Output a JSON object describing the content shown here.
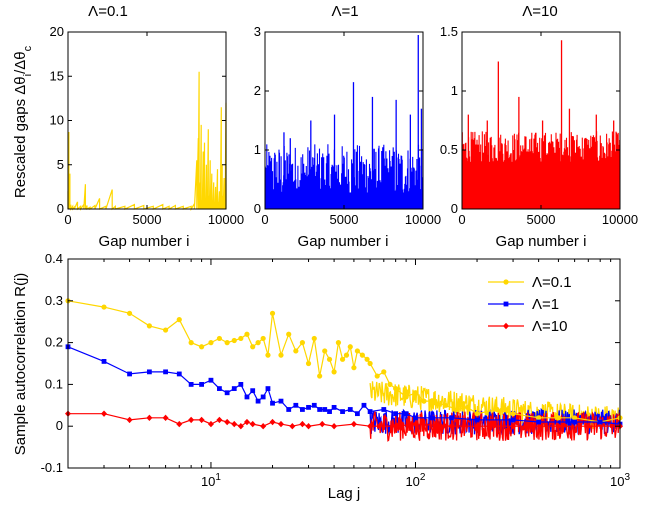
{
  "chart_data": [
    {
      "type": "bar",
      "title": "Λ=0.1",
      "xlabel": "Gap number i",
      "ylabel": "Rescaled gaps Δθ",
      "ylabel_sub1": "i",
      "ylabel_mid": "/Δθ",
      "ylabel_sub2": "c",
      "xlim": [
        0,
        10000
      ],
      "ylim": [
        0,
        20
      ],
      "xticks": [
        0,
        5000,
        10000
      ],
      "yticks": [
        0,
        5,
        10,
        15,
        20
      ],
      "color": "#FFD700",
      "series_x": [
        0,
        60,
        120,
        180,
        300,
        400,
        600,
        800,
        1000,
        1100,
        1200,
        1400,
        1700,
        2000,
        2400,
        2800,
        3000,
        3600,
        4200,
        4800,
        5400,
        6000,
        6400,
        6800,
        7300,
        7800,
        8000,
        8150,
        8250,
        8300,
        8380,
        8430,
        8500,
        8560,
        8600,
        8640,
        8700,
        8760,
        8820,
        8880,
        8950,
        9000,
        9050,
        9100,
        9160,
        9220,
        9280,
        9340,
        9400,
        9460,
        9520,
        9580,
        9640,
        9700,
        9760,
        9820,
        9880,
        9940,
        10000
      ],
      "series_y": [
        2,
        8.7,
        4,
        0.5,
        0.3,
        0.2,
        0.8,
        0.3,
        0.5,
        2.8,
        0.4,
        0.2,
        0.4,
        1.2,
        0.3,
        2.2,
        0.3,
        0.3,
        0.5,
        0.4,
        0.3,
        0.5,
        0.3,
        0.4,
        0.3,
        0.3,
        0.6,
        5.5,
        8.0,
        15.5,
        3.0,
        9.5,
        1.0,
        6.5,
        2.5,
        7.5,
        1.2,
        5.0,
        0.8,
        9.0,
        1.5,
        5.5,
        2.0,
        4.0,
        1.0,
        3.0,
        0.5,
        2.5,
        1.0,
        4.5,
        0.8,
        2.0,
        1.2,
        11.5,
        5.0,
        1.5,
        3.5,
        1.0,
        12.0
      ]
    },
    {
      "type": "bar",
      "title": "Λ=1",
      "xlabel": "Gap number i",
      "xlim": [
        0,
        10000
      ],
      "ylim": [
        0,
        3
      ],
      "xticks": [
        0,
        5000,
        10000
      ],
      "yticks": [
        0,
        1,
        2,
        3
      ],
      "color": "#0000FF",
      "spikes": [
        [
          1200,
          1.3
        ],
        [
          1600,
          1.2
        ],
        [
          2900,
          1.5
        ],
        [
          4400,
          1.6
        ],
        [
          5600,
          2.15
        ],
        [
          6800,
          1.9
        ],
        [
          8300,
          1.85
        ],
        [
          9200,
          1.6
        ],
        [
          9700,
          2.95
        ],
        [
          9900,
          1.7
        ]
      ]
    },
    {
      "type": "bar",
      "title": "Λ=10",
      "xlabel": "Gap number i",
      "xlim": [
        0,
        10000
      ],
      "ylim": [
        0,
        1.5
      ],
      "xticks": [
        0,
        5000,
        10000
      ],
      "yticks": [
        0,
        0.5,
        1,
        1.5
      ],
      "color": "#FF0000",
      "spikes": [
        [
          400,
          0.8
        ],
        [
          1600,
          0.75
        ],
        [
          2300,
          1.25
        ],
        [
          3600,
          0.95
        ],
        [
          5100,
          0.75
        ],
        [
          6300,
          1.43
        ],
        [
          6800,
          0.85
        ],
        [
          8500,
          0.8
        ],
        [
          9600,
          0.75
        ]
      ]
    },
    {
      "type": "line",
      "xlabel": "Lag  j",
      "ylabel": "Sample autocorrelation R(j)",
      "xscale": "log",
      "xlim": [
        2,
        1000
      ],
      "ylim": [
        -0.1,
        0.4
      ],
      "yticks": [
        -0.1,
        0,
        0.1,
        0.2,
        0.3,
        0.4
      ],
      "xticks": [
        10,
        100,
        1000
      ],
      "xtick_base": "10",
      "xtick_exps": [
        "1",
        "2",
        "3"
      ],
      "legend_position": "top-right",
      "series": [
        {
          "name": "Λ=0.1",
          "color": "#FFD700",
          "marker": "circle",
          "x": [
            2,
            3,
            4,
            5,
            6,
            7,
            8,
            9,
            10,
            11,
            12,
            13,
            14,
            15,
            16,
            17,
            18,
            19,
            20,
            22,
            24,
            26,
            28,
            30,
            32,
            34,
            36,
            38,
            40,
            42,
            44,
            46,
            48,
            50,
            52,
            55,
            58,
            60,
            65,
            70,
            75,
            80,
            90,
            100,
            110,
            120,
            140,
            160,
            180,
            200,
            250,
            300,
            400,
            500,
            600,
            800,
            1000
          ],
          "y": [
            0.3,
            0.285,
            0.27,
            0.24,
            0.23,
            0.255,
            0.2,
            0.19,
            0.2,
            0.21,
            0.2,
            0.205,
            0.21,
            0.22,
            0.19,
            0.2,
            0.21,
            0.17,
            0.27,
            0.17,
            0.22,
            0.18,
            0.2,
            0.15,
            0.21,
            0.12,
            0.18,
            0.16,
            0.13,
            0.2,
            0.16,
            0.17,
            0.19,
            0.14,
            0.18,
            0.17,
            0.16,
            0.15,
            0.12,
            0.13,
            0.1,
            0.09,
            0.07,
            0.08,
            0.06,
            0.06,
            0.05,
            0.04,
            0.045,
            0.03,
            0.04,
            0.03,
            0.02,
            0.02,
            0.02,
            0.01,
            0.02
          ]
        },
        {
          "name": "Λ=1",
          "color": "#0000FF",
          "marker": "square",
          "x": [
            2,
            3,
            4,
            5,
            6,
            7,
            8,
            9,
            10,
            11,
            12,
            13,
            14,
            15,
            16,
            17,
            18,
            19,
            20,
            22,
            24,
            26,
            28,
            30,
            32,
            34,
            36,
            38,
            40,
            44,
            48,
            52,
            56,
            60,
            70,
            80,
            90,
            100,
            120,
            150,
            200,
            300,
            400,
            600,
            800,
            1000
          ],
          "y": [
            0.19,
            0.155,
            0.125,
            0.13,
            0.13,
            0.125,
            0.1,
            0.1,
            0.11,
            0.09,
            0.08,
            0.09,
            0.1,
            0.07,
            0.085,
            0.06,
            0.07,
            0.09,
            0.055,
            0.06,
            0.04,
            0.05,
            0.04,
            0.045,
            0.05,
            0.04,
            0.04,
            0.035,
            0.045,
            0.035,
            0.04,
            0.03,
            0.05,
            0.035,
            0.04,
            0.03,
            0.03,
            0.02,
            0.02,
            0.02,
            0.015,
            0.015,
            0.01,
            0.01,
            0.01,
            0.005
          ]
        },
        {
          "name": "Λ=10",
          "color": "#FF0000",
          "marker": "diamond",
          "x": [
            2,
            3,
            4,
            5,
            6,
            7,
            8,
            9,
            10,
            11,
            12,
            13,
            14,
            15,
            16,
            18,
            20,
            22,
            25,
            28,
            30,
            35,
            40,
            50,
            60,
            80,
            100,
            150,
            200,
            300,
            500,
            700,
            1000
          ],
          "y": [
            0.03,
            0.03,
            0.015,
            0.02,
            0.02,
            0.005,
            0.015,
            0.015,
            0.005,
            0.015,
            0.01,
            0.005,
            0.0,
            0.01,
            0.005,
            0.0,
            0.01,
            0.005,
            0.0,
            0.005,
            0.0,
            0.005,
            0.0,
            0.005,
            0.0,
            0.0,
            0.005,
            0.0,
            0.0,
            0.0,
            0.0,
            0.0,
            0.0
          ]
        }
      ]
    }
  ]
}
